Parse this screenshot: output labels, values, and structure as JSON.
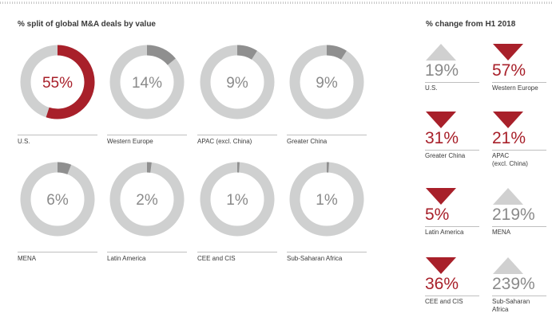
{
  "left_title": "% split of global M&A deals by value",
  "right_title": "% change from H1 2018",
  "colors": {
    "accent": "#a8202a",
    "ring_bg": "#cfd0d0",
    "small_segment": "#8f8f8f",
    "gray_text": "#8a8a8a",
    "up_triangle": "#d0d0d0"
  },
  "chart_data": [
    {
      "type": "pie",
      "title": "% split of global M&A deals by value",
      "categories": [
        "U.S.",
        "Western Europe",
        "APAC (excl. China)",
        "Greater China",
        "MENA",
        "Latin America",
        "CEE and CIS",
        "Sub-Saharan Africa"
      ],
      "values": [
        55,
        14,
        9,
        9,
        6,
        2,
        1,
        1
      ],
      "labels": [
        "55%",
        "14%",
        "9%",
        "9%",
        "6%",
        "2%",
        "1%",
        "1%"
      ],
      "unit": "%"
    },
    {
      "type": "table",
      "title": "% change from H1 2018",
      "rows": [
        {
          "region": "U.S.",
          "change": "19%",
          "direction": "up"
        },
        {
          "region": "Western Europe",
          "change": "57%",
          "direction": "down"
        },
        {
          "region": "Greater China",
          "change": "31%",
          "direction": "down"
        },
        {
          "region": "APAC (excl. China)",
          "change": "21%",
          "direction": "down"
        },
        {
          "region": "Latin America",
          "change": "5%",
          "direction": "down"
        },
        {
          "region": "MENA",
          "change": "219%",
          "direction": "up"
        },
        {
          "region": "CEE and CIS",
          "change": "36%",
          "direction": "down"
        },
        {
          "region": "Sub-Saharan Africa",
          "change": "239%",
          "direction": "up"
        }
      ]
    }
  ]
}
